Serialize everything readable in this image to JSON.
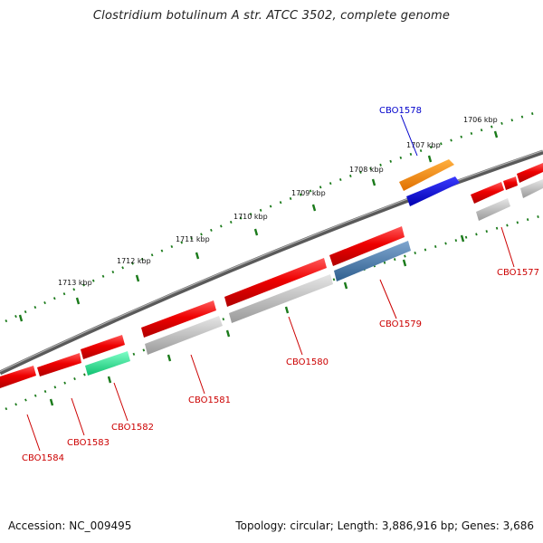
{
  "title": "Clostridium botulinum A str. ATCC 3502, complete genome",
  "accession": "Accession: NC_009495",
  "topology": "Topology: circular; Length: 3,886,916 bp; Genes: 3,686",
  "colors": {
    "backbone": "#808080",
    "tick": "#1a7a1a",
    "label_red": "#cc0000",
    "label_blue": "#0000cc"
  },
  "kbp_labels": [
    "1706 kbp",
    "1707 kbp",
    "1708 kbp",
    "1709 kbp",
    "1710 kbp",
    "1711 kbp",
    "1712 kbp",
    "1713 kbp"
  ],
  "gene_labels": {
    "cbo1578": "CBO1578",
    "cbo1577": "CBO1577",
    "cbo1579": "CBO1579",
    "cbo1580": "CBO1580",
    "cbo1581": "CBO1581",
    "cbo1582": "CBO1582",
    "cbo1583": "CBO1583",
    "cbo1584": "CBO1584"
  }
}
